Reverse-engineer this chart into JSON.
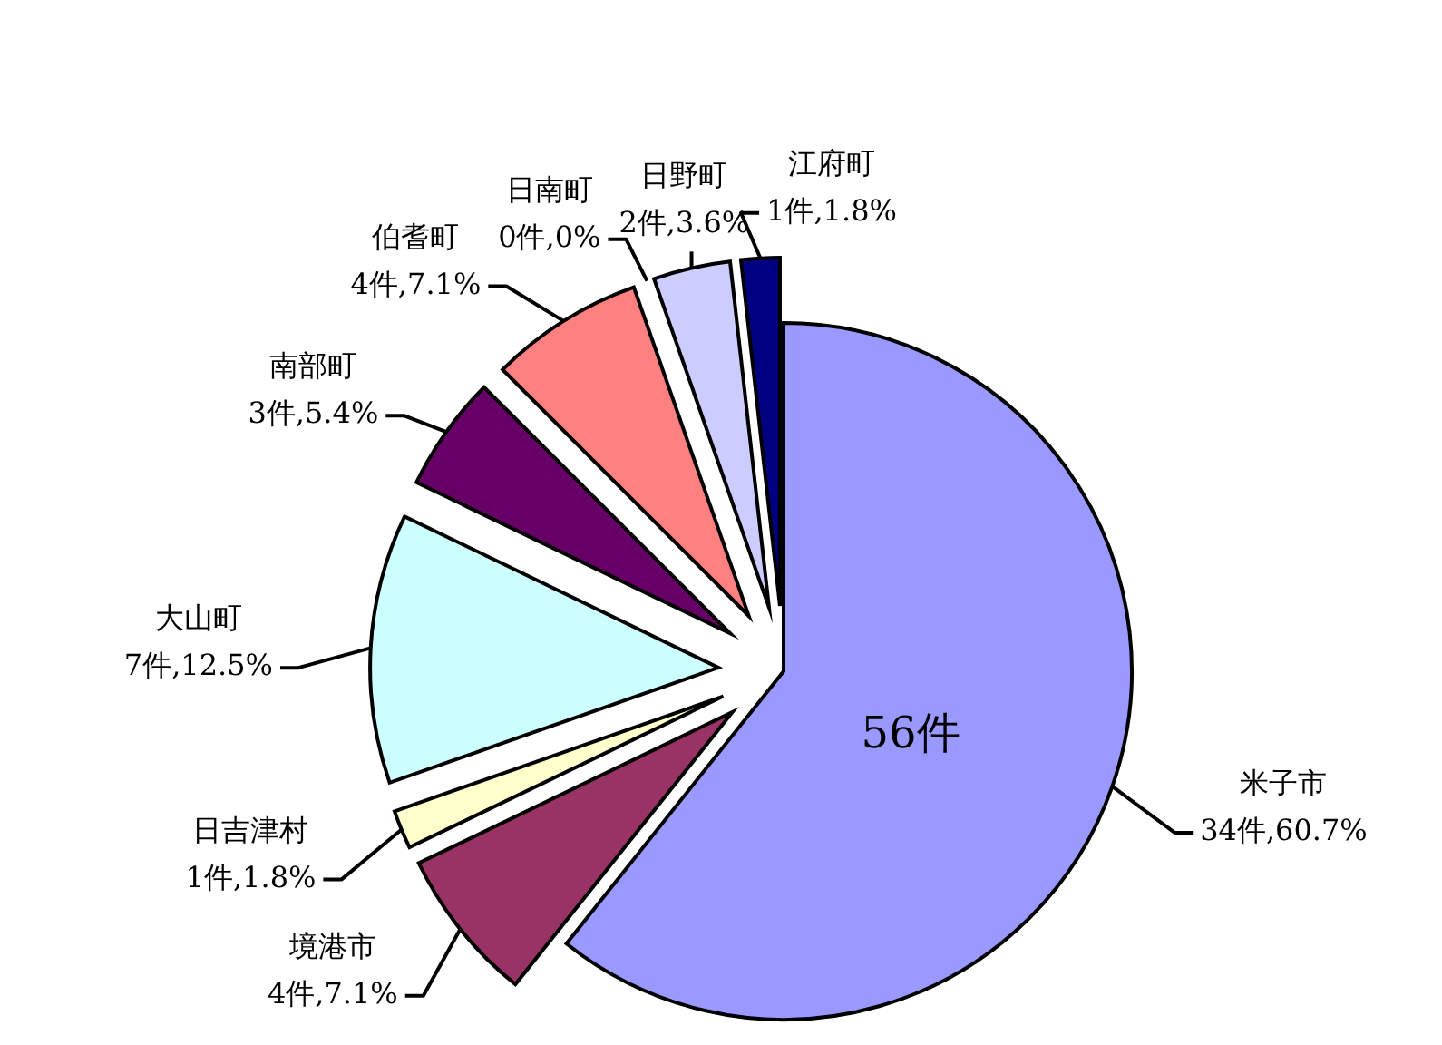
{
  "chart_data": {
    "type": "pie",
    "categories": [
      "米子市",
      "境港市",
      "日吉津村",
      "大山町",
      "南部町",
      "伯耆町",
      "日南町",
      "日野町",
      "江府町"
    ],
    "values": [
      34,
      4,
      1,
      7,
      3,
      4,
      0,
      2,
      1
    ],
    "colors": [
      "#9999ff",
      "#993366",
      "#ffffcc",
      "#ccffff",
      "#660066",
      "#ff8080",
      "#0066cc",
      "#ccccff",
      "#000080"
    ],
    "value_labels": [
      "34件,60.7%",
      "4件,7.1%",
      "1件,1.8%",
      "7件,12.5%",
      "3件,5.4%",
      "4件,7.1%",
      "0件,0%",
      "2件,3.6%",
      "1件,1.8%"
    ],
    "annotations": [
      "56件"
    ],
    "legend": false
  }
}
